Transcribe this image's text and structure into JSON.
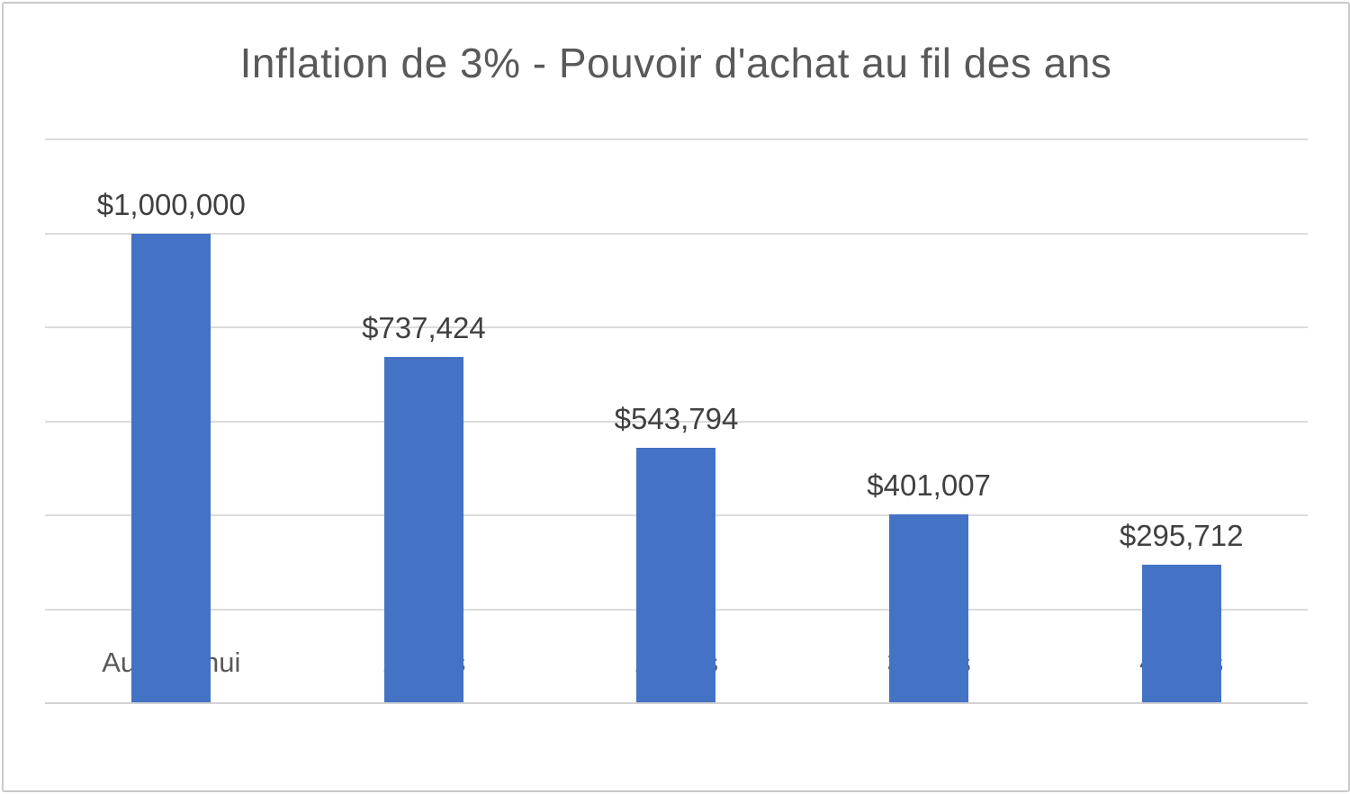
{
  "chart_data": {
    "type": "bar",
    "title": "Inflation de 3% - Pouvoir d'achat au fil des ans",
    "categories": [
      "Aujourd'hui",
      "10 ans",
      "20 ans",
      "30 ans",
      "40 ans"
    ],
    "values": [
      1000000,
      737424,
      543794,
      401007,
      295712
    ],
    "data_labels": [
      "$1,000,000",
      "$737,424",
      "$543,794",
      "$401,007",
      "$295,712"
    ],
    "xlabel": "",
    "ylabel": "",
    "ylim": [
      0,
      1200000
    ],
    "gridline_interval": 200000,
    "grid": true,
    "legend": false,
    "y_axis_tick_labels_visible": false,
    "colors": {
      "bar": "#4472C4",
      "title": "#595959",
      "data_label": "#404040",
      "axis_label": "#595959",
      "gridline": "#dcdcdc",
      "axis_line": "#d2d2d2",
      "frame_border": "#c9c9c9",
      "background": "#ffffff"
    }
  }
}
